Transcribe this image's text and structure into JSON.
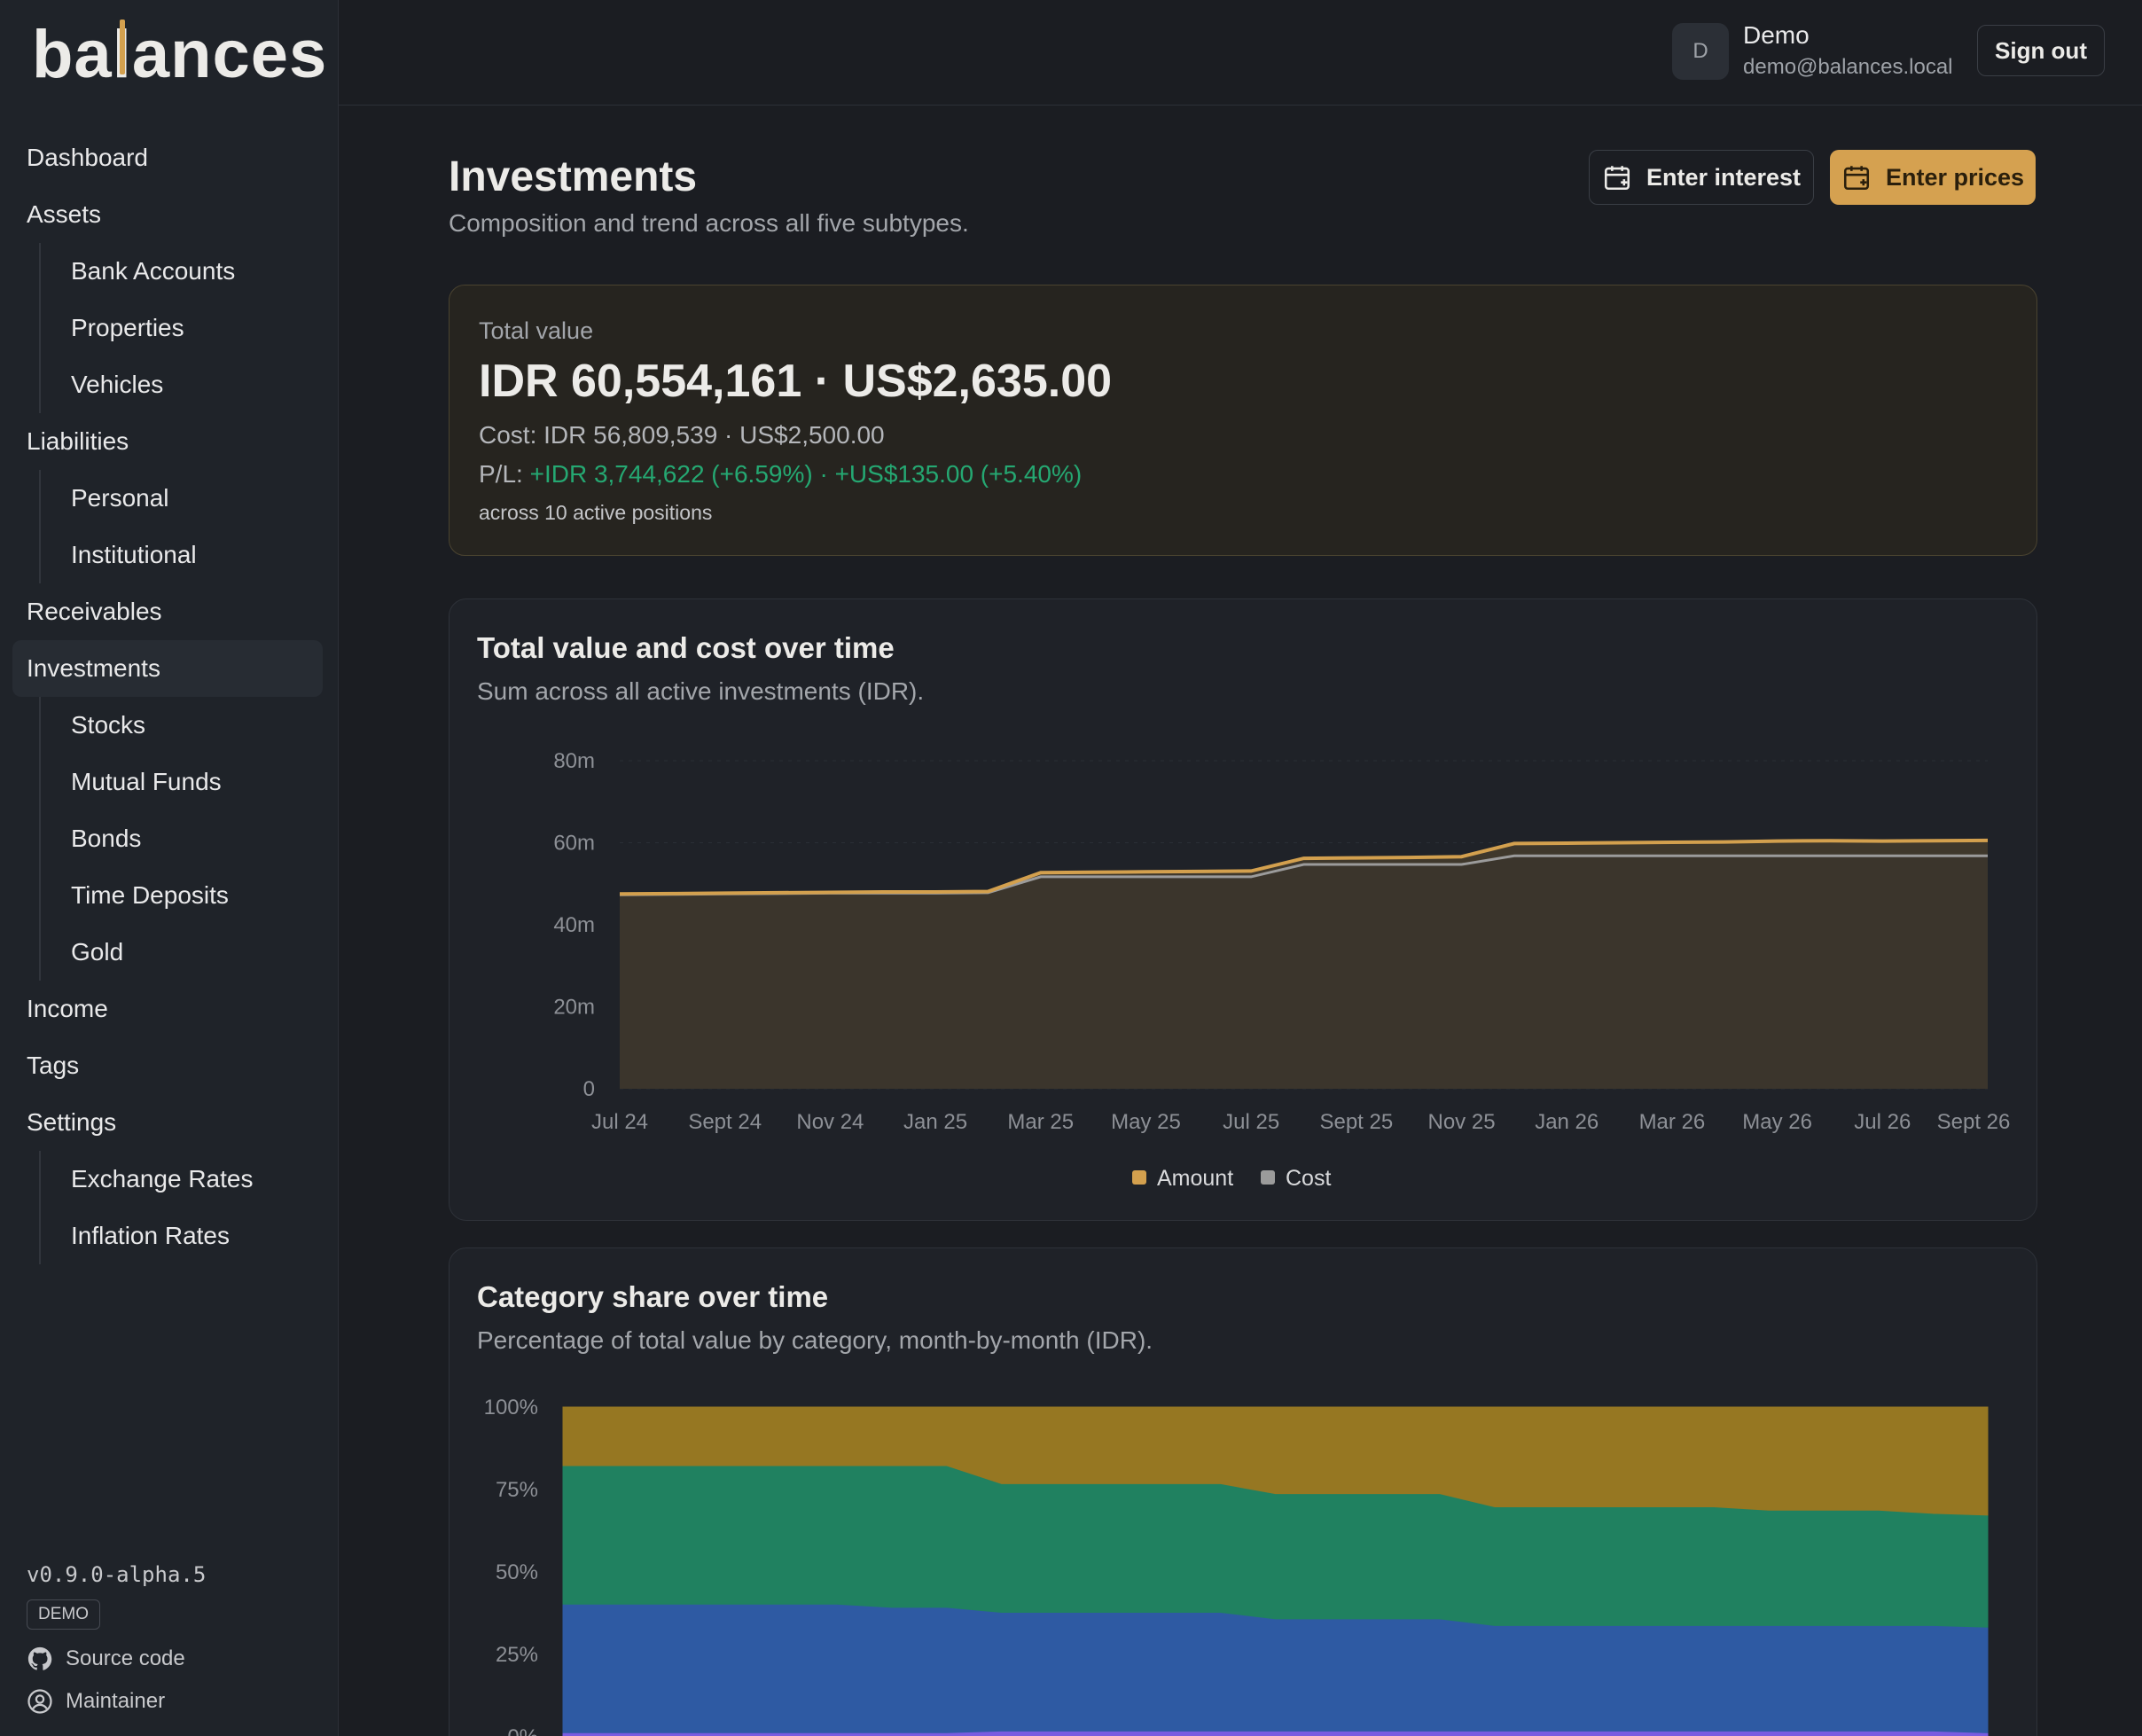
{
  "app": {
    "logo": "balances"
  },
  "sidebar": {
    "items": [
      {
        "label": "Dashboard",
        "level": "top"
      },
      {
        "label": "Assets",
        "level": "top"
      },
      {
        "label": "Bank Accounts",
        "level": "sub"
      },
      {
        "label": "Properties",
        "level": "sub"
      },
      {
        "label": "Vehicles",
        "level": "sub"
      },
      {
        "label": "Liabilities",
        "level": "top"
      },
      {
        "label": "Personal",
        "level": "sub"
      },
      {
        "label": "Institutional",
        "level": "sub"
      },
      {
        "label": "Receivables",
        "level": "top"
      },
      {
        "label": "Investments",
        "level": "top",
        "active": true
      },
      {
        "label": "Stocks",
        "level": "sub"
      },
      {
        "label": "Mutual Funds",
        "level": "sub"
      },
      {
        "label": "Bonds",
        "level": "sub"
      },
      {
        "label": "Time Deposits",
        "level": "sub"
      },
      {
        "label": "Gold",
        "level": "sub"
      },
      {
        "label": "Income",
        "level": "top"
      },
      {
        "label": "Tags",
        "level": "top"
      },
      {
        "label": "Settings",
        "level": "top"
      },
      {
        "label": "Exchange Rates",
        "level": "sub"
      },
      {
        "label": "Inflation Rates",
        "level": "sub"
      }
    ],
    "footer": {
      "version": "v0.9.0-alpha.5",
      "badge": "DEMO",
      "source_link": "Source code",
      "maintainer_link": "Maintainer"
    }
  },
  "header": {
    "avatar_initial": "D",
    "user_name": "Demo",
    "user_email": "demo@balances.local",
    "sign_out": "Sign out"
  },
  "page": {
    "title": "Investments",
    "subtitle": "Composition and trend across all five subtypes.",
    "enter_interest": "Enter interest",
    "enter_prices": "Enter prices"
  },
  "summary": {
    "label": "Total value",
    "value": "IDR 60,554,161 · US$2,635.00",
    "cost": "Cost: IDR 56,809,539 · US$2,500.00",
    "pl_label": "P/L: ",
    "pl_value": "+IDR 3,744,622 (+6.59%) · +US$135.00 (+5.40%)",
    "positions": "across 10 active positions"
  },
  "colors": {
    "accent": "#d5a150",
    "gain": "#25a872",
    "amount": "#d3a04e",
    "cost": "#9b9b9b"
  },
  "chart_data": [
    {
      "type": "area",
      "title": "Total value and cost over time",
      "subtitle": "Sum across all active investments (IDR).",
      "x_ticks": [
        "Jul 24",
        "Sept 24",
        "Nov 24",
        "Jan 25",
        "Mar 25",
        "May 25",
        "Jul 25",
        "Sept 25",
        "Nov 25",
        "Jan 26",
        "Mar 26",
        "May 26",
        "Jul 26",
        "Sept 26"
      ],
      "y_ticks": [
        "0",
        "20m",
        "40m",
        "60m",
        "80m"
      ],
      "ylim": [
        0,
        80000000
      ],
      "legend": [
        "Amount",
        "Cost"
      ],
      "legend_position": "bottom-center",
      "x": [
        "2024-07",
        "2024-08",
        "2024-09",
        "2024-10",
        "2024-11",
        "2024-12",
        "2025-01",
        "2025-02",
        "2025-03",
        "2025-04",
        "2025-05",
        "2025-06",
        "2025-07",
        "2025-08",
        "2025-09",
        "2025-10",
        "2025-11",
        "2025-12",
        "2026-01",
        "2026-02",
        "2026-03",
        "2026-04",
        "2026-05",
        "2026-06",
        "2026-07",
        "2026-08",
        "2026-09"
      ],
      "series": [
        {
          "name": "Amount",
          "color": "#d3a04e",
          "values": [
            47500000,
            47600000,
            47700000,
            47800000,
            47900000,
            48000000,
            48000000,
            48100000,
            52700000,
            52800000,
            52900000,
            53000000,
            53100000,
            56200000,
            56300000,
            56400000,
            56600000,
            59800000,
            59900000,
            60000000,
            60100000,
            60200000,
            60400000,
            60500000,
            60400000,
            60500000,
            60554161
          ]
        },
        {
          "name": "Cost",
          "color": "#9b9b9b",
          "values": [
            47300000,
            47400000,
            47500000,
            47600000,
            47700000,
            47700000,
            47700000,
            47800000,
            51700000,
            51700000,
            51700000,
            51700000,
            51700000,
            54700000,
            54700000,
            54700000,
            54700000,
            56800000,
            56800000,
            56800000,
            56800000,
            56800000,
            56800000,
            56800000,
            56800000,
            56800000,
            56809539
          ]
        }
      ]
    },
    {
      "type": "area",
      "title": "Category share over time",
      "subtitle": "Percentage of total value by category, month-by-month (IDR).",
      "y_ticks": [
        "0%",
        "25%",
        "50%",
        "75%",
        "100%"
      ],
      "ylim": [
        0,
        100
      ],
      "x": [
        "2024-07",
        "2024-08",
        "2024-09",
        "2024-10",
        "2024-11",
        "2024-12",
        "2025-01",
        "2025-02",
        "2025-03",
        "2025-04",
        "2025-05",
        "2025-06",
        "2025-07",
        "2025-08",
        "2025-09",
        "2025-10",
        "2025-11",
        "2025-12",
        "2026-01",
        "2026-02",
        "2026-03",
        "2026-04",
        "2026-05",
        "2026-06",
        "2026-07",
        "2026-08",
        "2026-09"
      ],
      "stacked": true,
      "series": [
        {
          "color": "#7a5ce0",
          "values": [
            1,
            1,
            1,
            1,
            1,
            1,
            1,
            1,
            1.5,
            1.5,
            1.5,
            1.5,
            1.5,
            1.5,
            1.5,
            1.5,
            1.5,
            1.5,
            1.5,
            1.5,
            1.5,
            1.5,
            1.5,
            1.5,
            1.5,
            1.5,
            1
          ]
        },
        {
          "color": "#2e5aa3",
          "values": [
            39,
            39,
            39,
            39,
            39,
            39,
            38,
            38,
            36,
            36,
            36,
            36,
            36,
            34,
            34,
            34,
            34,
            32,
            32,
            32,
            32,
            32,
            32,
            32,
            32,
            32,
            32
          ]
        },
        {
          "color": "#208160",
          "values": [
            42,
            42,
            42,
            42,
            42,
            42,
            43,
            43,
            39,
            39,
            39,
            39,
            39,
            38,
            38,
            38,
            38,
            36,
            36,
            36,
            36,
            36,
            35,
            35,
            35,
            34,
            34
          ]
        },
        {
          "color": "#967722",
          "values": [
            18,
            18,
            18,
            18,
            18,
            18,
            18,
            18,
            23.5,
            23.5,
            23.5,
            23.5,
            23.5,
            26.5,
            26.5,
            26.5,
            26.5,
            30.5,
            30.5,
            30.5,
            30.5,
            30.5,
            31.5,
            31.5,
            31.5,
            32.5,
            33
          ]
        }
      ]
    }
  ]
}
